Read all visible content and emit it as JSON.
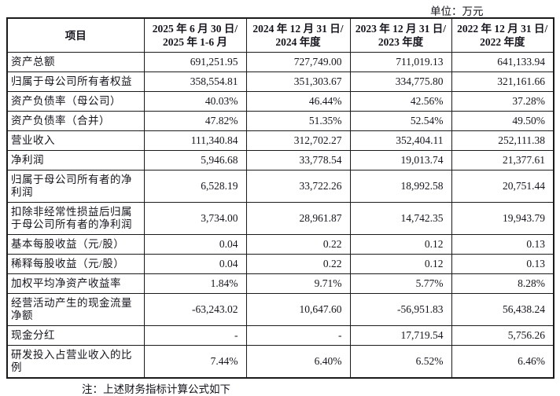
{
  "unit_label": "单位：万元",
  "table": {
    "columns": [
      "项目",
      "2025 年 6 月 30 日/\n2025 年 1-6 月",
      "2024 年 12 月 31 日/\n2024 年度",
      "2023 年 12 月 31 日/\n2023 年度",
      "2022 年 12 月 31 日/\n2022 年度"
    ],
    "rows": [
      {
        "label": "资产总额",
        "values": [
          "691,251.95",
          "727,749.00",
          "711,019.13",
          "641,133.94"
        ]
      },
      {
        "label": "归属于母公司所有者权益",
        "values": [
          "358,554.81",
          "351,303.67",
          "334,775.80",
          "321,161.66"
        ]
      },
      {
        "label": "资产负债率（母公司）",
        "values": [
          "40.03%",
          "46.44%",
          "42.56%",
          "37.28%"
        ]
      },
      {
        "label": "资产负债率（合并）",
        "values": [
          "47.82%",
          "51.35%",
          "52.54%",
          "49.50%"
        ]
      },
      {
        "label": "营业收入",
        "values": [
          "111,340.84",
          "312,702.27",
          "352,404.11",
          "252,111.38"
        ]
      },
      {
        "label": "净利润",
        "values": [
          "5,946.68",
          "33,778.54",
          "19,013.74",
          "21,377.61"
        ]
      },
      {
        "label": "归属于母公司所有者的净利润",
        "values": [
          "6,528.19",
          "33,722.26",
          "18,992.58",
          "20,751.44"
        ]
      },
      {
        "label": "扣除非经常性损益后归属于母公司所有者的净利润",
        "values": [
          "3,734.00",
          "28,961.87",
          "14,742.35",
          "19,943.79"
        ]
      },
      {
        "label": "基本每股收益（元/股）",
        "values": [
          "0.04",
          "0.22",
          "0.12",
          "0.13"
        ]
      },
      {
        "label": "稀释每股收益（元/股）",
        "values": [
          "0.04",
          "0.22",
          "0.12",
          "0.13"
        ]
      },
      {
        "label": "加权平均净资产收益率",
        "values": [
          "1.84%",
          "9.71%",
          "5.77%",
          "8.28%"
        ]
      },
      {
        "label": "经营活动产生的现金流量净额",
        "values": [
          "-63,243.02",
          "10,647.60",
          "-56,951.83",
          "56,438.24"
        ]
      },
      {
        "label": "现金分红",
        "values": [
          "-",
          "-",
          "17,719.54",
          "5,756.26"
        ]
      },
      {
        "label": "研发投入占营业收入的比例",
        "values": [
          "7.44%",
          "6.40%",
          "6.52%",
          "6.46%"
        ]
      }
    ]
  },
  "note": "注：上述财务指标计算公式如下"
}
